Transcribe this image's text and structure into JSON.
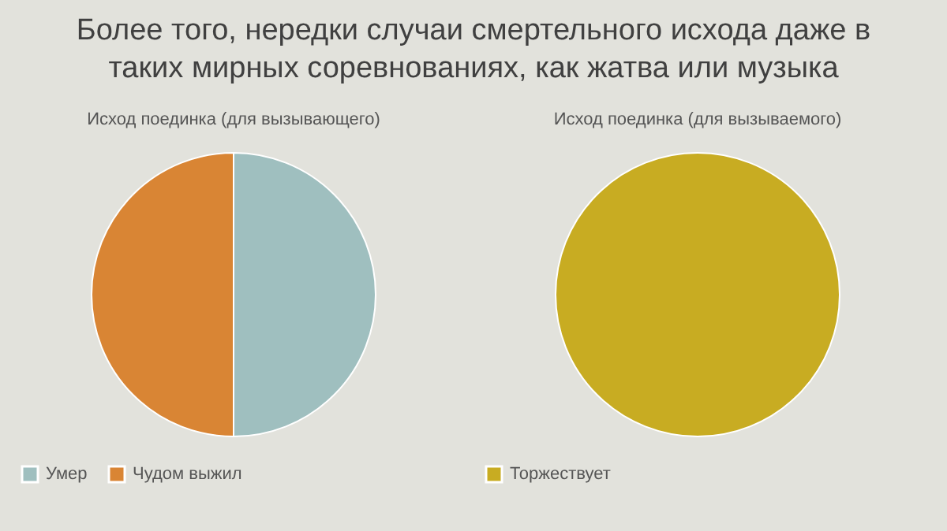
{
  "chart_data": [
    {
      "type": "pie",
      "title": "Более того, нередки случаи смертельного исхода даже в таких мирных соревнованиях, как жатва или музыка",
      "subtitle": "Исход поединка (для вызывающего)",
      "categories": [
        "Умер",
        "Чудом выжил"
      ],
      "values": [
        50,
        50
      ],
      "colors": [
        "#9fbfbf",
        "#d98534"
      ],
      "legend": "bottom"
    },
    {
      "type": "pie",
      "subtitle": "Исход поединка (для вызываемого)",
      "categories": [
        "Торжествует"
      ],
      "values": [
        100
      ],
      "colors": [
        "#c8ac22"
      ],
      "legend": "bottom"
    }
  ]
}
